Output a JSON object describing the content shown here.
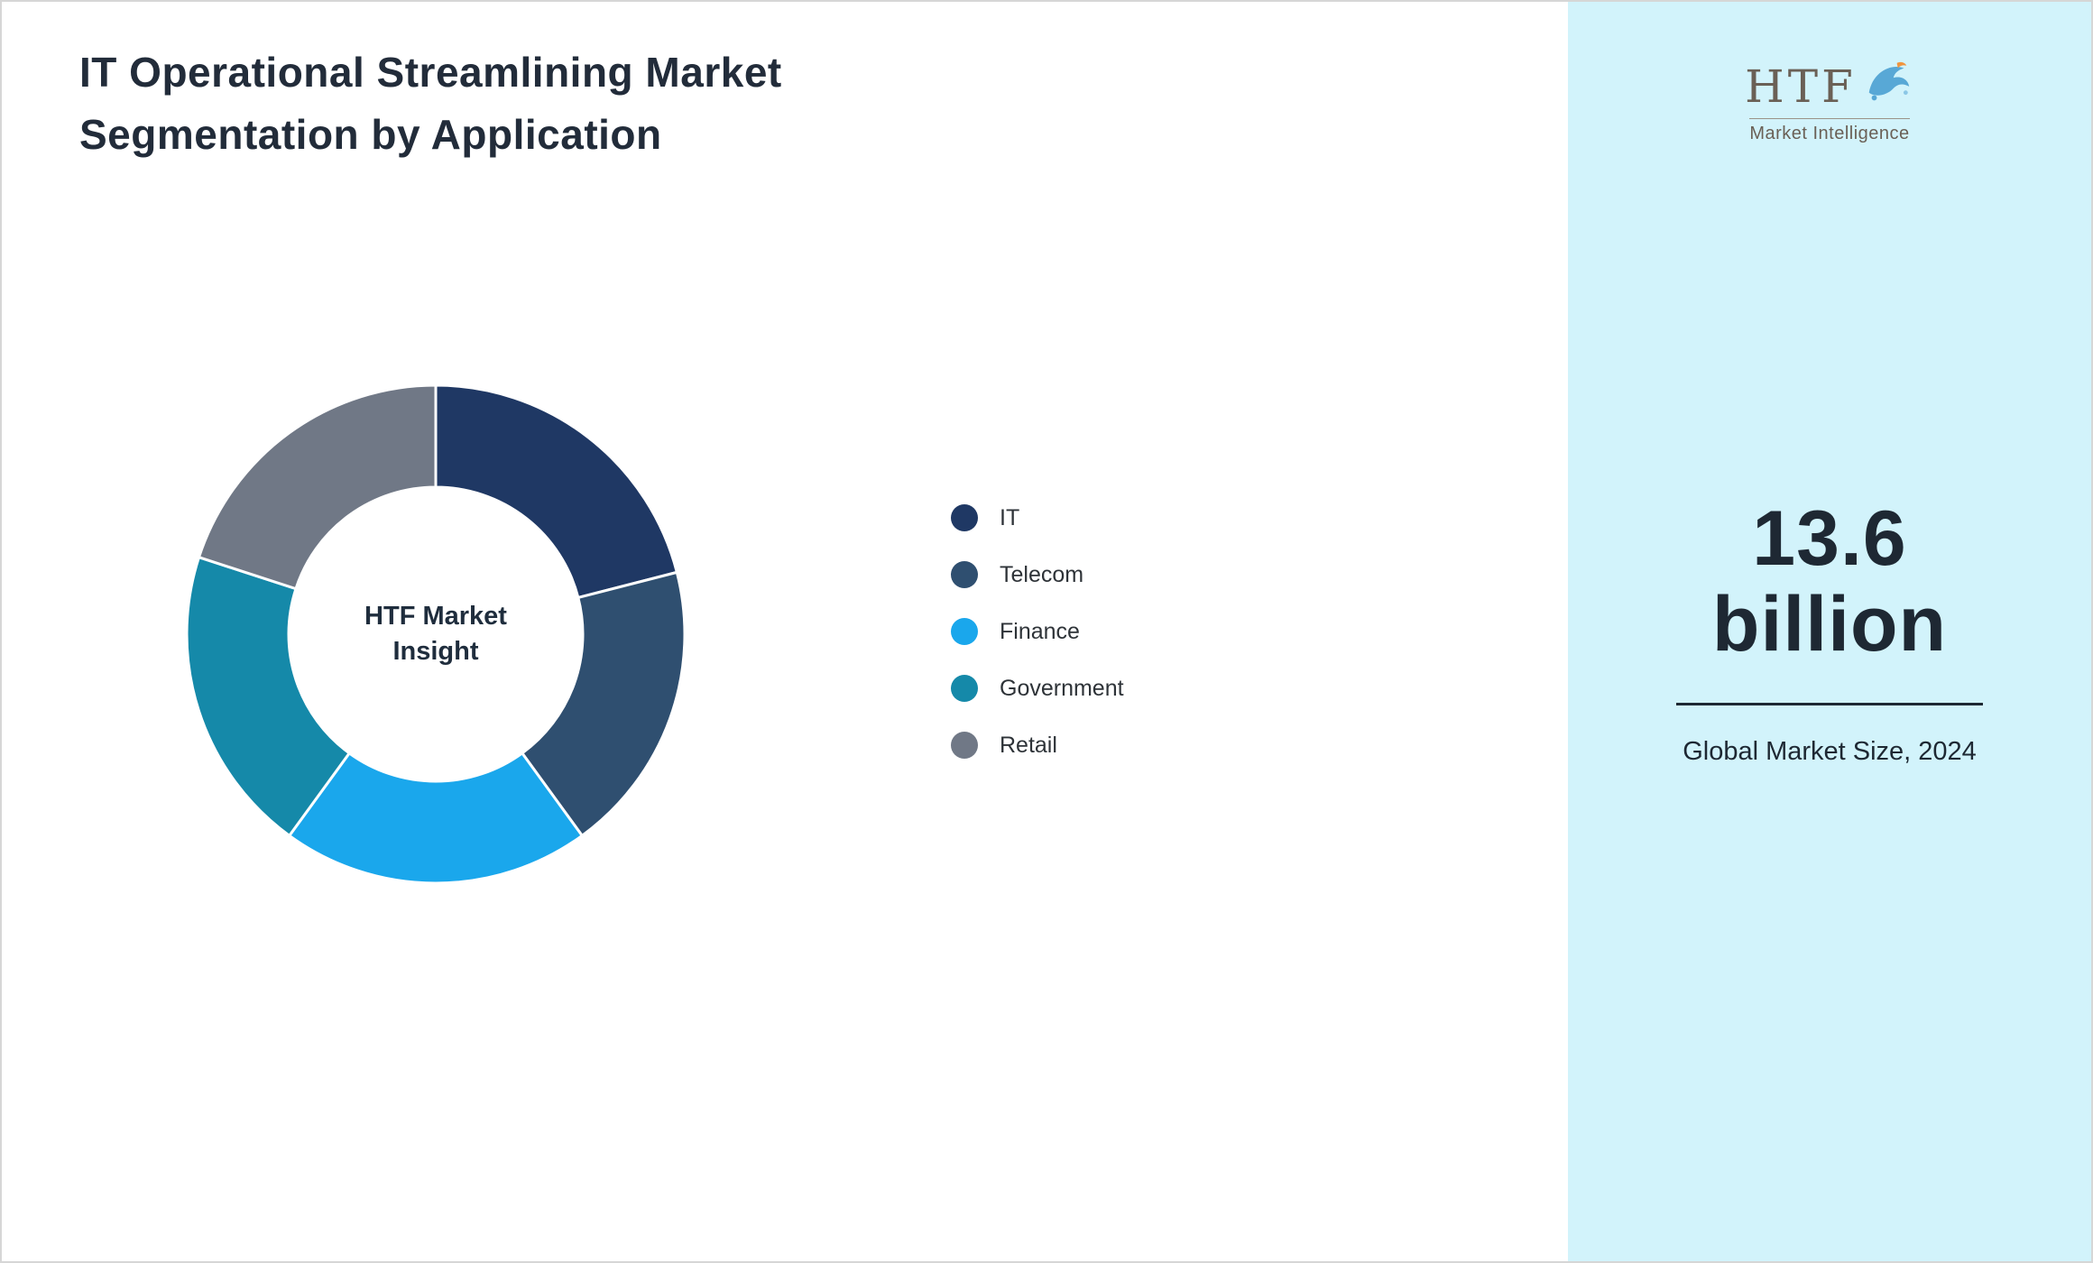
{
  "page": {
    "title": "IT Operational Streamlining Market Segmentation by Application"
  },
  "logo": {
    "acronym": "HTF",
    "tagline": "Market Intelligence",
    "text_color": "#6a6056",
    "dolphin_blue": "#58a8d6",
    "dolphin_orange": "#f0953f"
  },
  "side_panel": {
    "background": "#d2f3fb",
    "market_size_value": "13.6",
    "market_size_unit": "billion",
    "market_size_caption": "Global Market Size, 2024",
    "text_color": "#1e2833"
  },
  "chart_data": {
    "type": "pie",
    "donut": true,
    "title": "IT Operational Streamlining Market Segmentation by Application",
    "center_label": "HTF Market Insight",
    "legend_position": "right",
    "segments": [
      {
        "label": "IT",
        "value": 21,
        "color": "#1f3864"
      },
      {
        "label": "Telecom",
        "value": 19,
        "color": "#2f4f70"
      },
      {
        "label": "Finance",
        "value": 20,
        "color": "#1aa7ec"
      },
      {
        "label": "Government",
        "value": 20,
        "color": "#1589a9"
      },
      {
        "label": "Retail",
        "value": 20,
        "color": "#707886"
      }
    ]
  }
}
